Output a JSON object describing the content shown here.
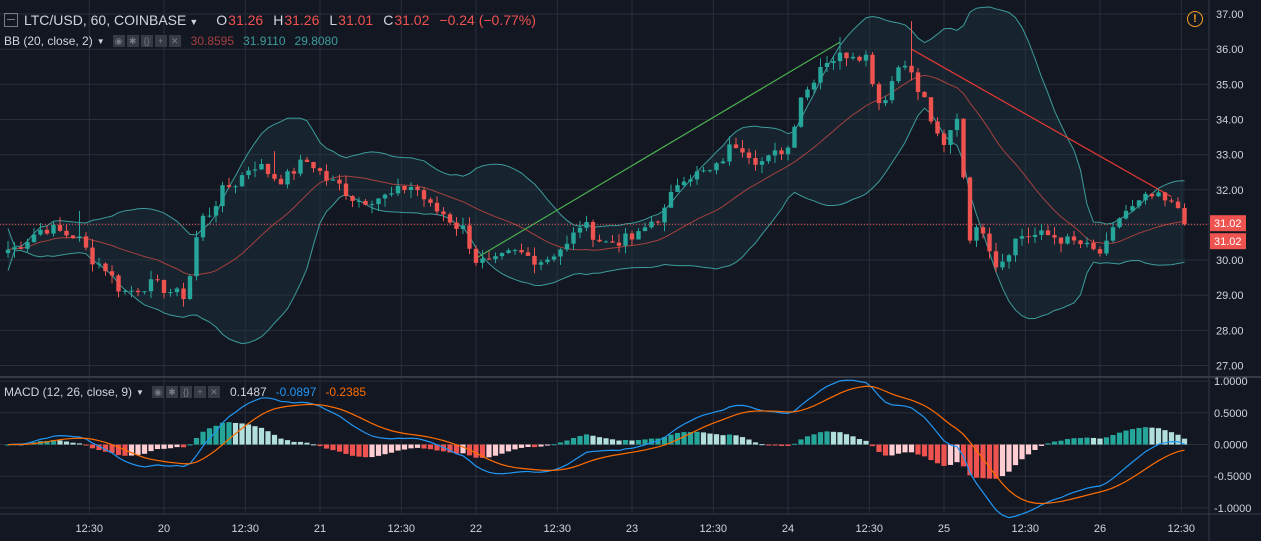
{
  "header": {
    "symbol": "LTC/USD, 60, COINBASE",
    "open_label": "O",
    "open": "31.26",
    "high_label": "H",
    "high": "31.26",
    "low_label": "L",
    "low": "31.01",
    "close_label": "C",
    "close": "31.02",
    "change": "−0.24 (−0.77%)"
  },
  "bb": {
    "label": "BB (20, close, 2)",
    "v1": "30.8595",
    "v2": "31.9110",
    "v3": "29.8080",
    "color1": "#a5403f",
    "color2": "#3c9c9c",
    "color3": "#3c9c9c"
  },
  "macd": {
    "label": "MACD (12, 26, close, 9)",
    "v1": "0.1487",
    "v2": "-0.0897",
    "v3": "-0.2385",
    "color1": "#d1d4dc",
    "color2": "#2196f3",
    "color3": "#ff6d00"
  },
  "warning_icon": "warning-circle-icon",
  "price_labels": [
    "31.02",
    "31.02"
  ],
  "chart_data": [
    {
      "type": "candlestick",
      "ylim": [
        26.7,
        37.4
      ],
      "y_ticks": [
        "37.00",
        "36.00",
        "35.00",
        "34.00",
        "33.00",
        "32.00",
        "31.00",
        "30.00",
        "29.00",
        "28.00",
        "27.00"
      ],
      "y_tick_values": [
        37,
        36,
        35,
        34,
        33,
        32,
        31,
        30,
        29,
        28,
        27
      ],
      "x_ticks": [
        "12:30",
        "20",
        "12:30",
        "21",
        "12:30",
        "22",
        "12:30",
        "23",
        "12:30",
        "24",
        "12:30",
        "25",
        "12:30",
        "26",
        "12:30"
      ],
      "x_tick_hours": [
        12.5,
        24,
        36.5,
        48,
        60.5,
        72,
        84.5,
        96,
        108.5,
        120,
        132.5,
        144,
        156.5,
        168,
        180.5
      ],
      "last_price": 31.02,
      "anchors": [
        [
          0,
          30.3
        ],
        [
          6,
          30.9
        ],
        [
          10,
          30.7
        ],
        [
          14,
          29.9
        ],
        [
          18,
          29.1
        ],
        [
          22,
          29.3
        ],
        [
          27,
          29.0
        ],
        [
          30,
          31.2
        ],
        [
          34,
          32.1
        ],
        [
          38,
          32.7
        ],
        [
          42,
          32.3
        ],
        [
          46,
          32.8
        ],
        [
          50,
          32.2
        ],
        [
          54,
          31.7
        ],
        [
          58,
          31.8
        ],
        [
          62,
          32.1
        ],
        [
          66,
          31.4
        ],
        [
          70,
          30.9
        ],
        [
          72,
          30.0
        ],
        [
          74,
          29.9
        ],
        [
          78,
          30.2
        ],
        [
          82,
          30.0
        ],
        [
          86,
          30.4
        ],
        [
          88,
          31.0
        ],
        [
          92,
          30.5
        ],
        [
          96,
          30.6
        ],
        [
          100,
          31.2
        ],
        [
          104,
          32.4
        ],
        [
          108,
          32.5
        ],
        [
          112,
          33.3
        ],
        [
          116,
          32.8
        ],
        [
          120,
          33.2
        ],
        [
          122,
          34.7
        ],
        [
          126,
          35.7
        ],
        [
          130,
          35.9
        ],
        [
          132,
          35.8
        ],
        [
          134,
          34.5
        ],
        [
          138,
          35.7
        ],
        [
          140,
          34.8
        ],
        [
          144,
          33.2
        ],
        [
          146,
          34.1
        ],
        [
          148,
          30.7
        ],
        [
          150,
          30.9
        ],
        [
          152,
          29.9
        ],
        [
          156,
          30.7
        ],
        [
          160,
          30.7
        ],
        [
          164,
          30.5
        ],
        [
          168,
          30.2
        ],
        [
          172,
          31.4
        ],
        [
          176,
          31.8
        ],
        [
          180,
          31.5
        ],
        [
          181,
          31.02
        ]
      ],
      "series": [
        {
          "name": "Bollinger upper",
          "color": "#3c9c9c"
        },
        {
          "name": "Bollinger basis",
          "color": "#a5403f"
        },
        {
          "name": "Bollinger lower",
          "color": "#3c9c9c"
        }
      ],
      "trendlines": [
        {
          "color": "#4caf50",
          "from": [
            72,
            30.05
          ],
          "to": [
            128,
            36.2
          ]
        },
        {
          "color": "#e53935",
          "from": [
            139,
            36.0
          ],
          "to": [
            179,
            31.8
          ]
        }
      ]
    },
    {
      "type": "macd",
      "ylim": [
        -1.08,
        1.05
      ],
      "y_ticks": [
        "1.0000",
        "0.5000",
        "0.0000",
        "-0.5000",
        "-1.0000"
      ],
      "y_tick_values": [
        1,
        0.5,
        0,
        -0.5,
        -1
      ],
      "macd_color": "#2196f3",
      "signal_color": "#ff6d00",
      "hist_colors": {
        "pos_up": "#26a69a",
        "pos_down": "#b2dfdb",
        "neg_down": "#ef5350",
        "neg_up": "#ffcdd2"
      }
    }
  ]
}
